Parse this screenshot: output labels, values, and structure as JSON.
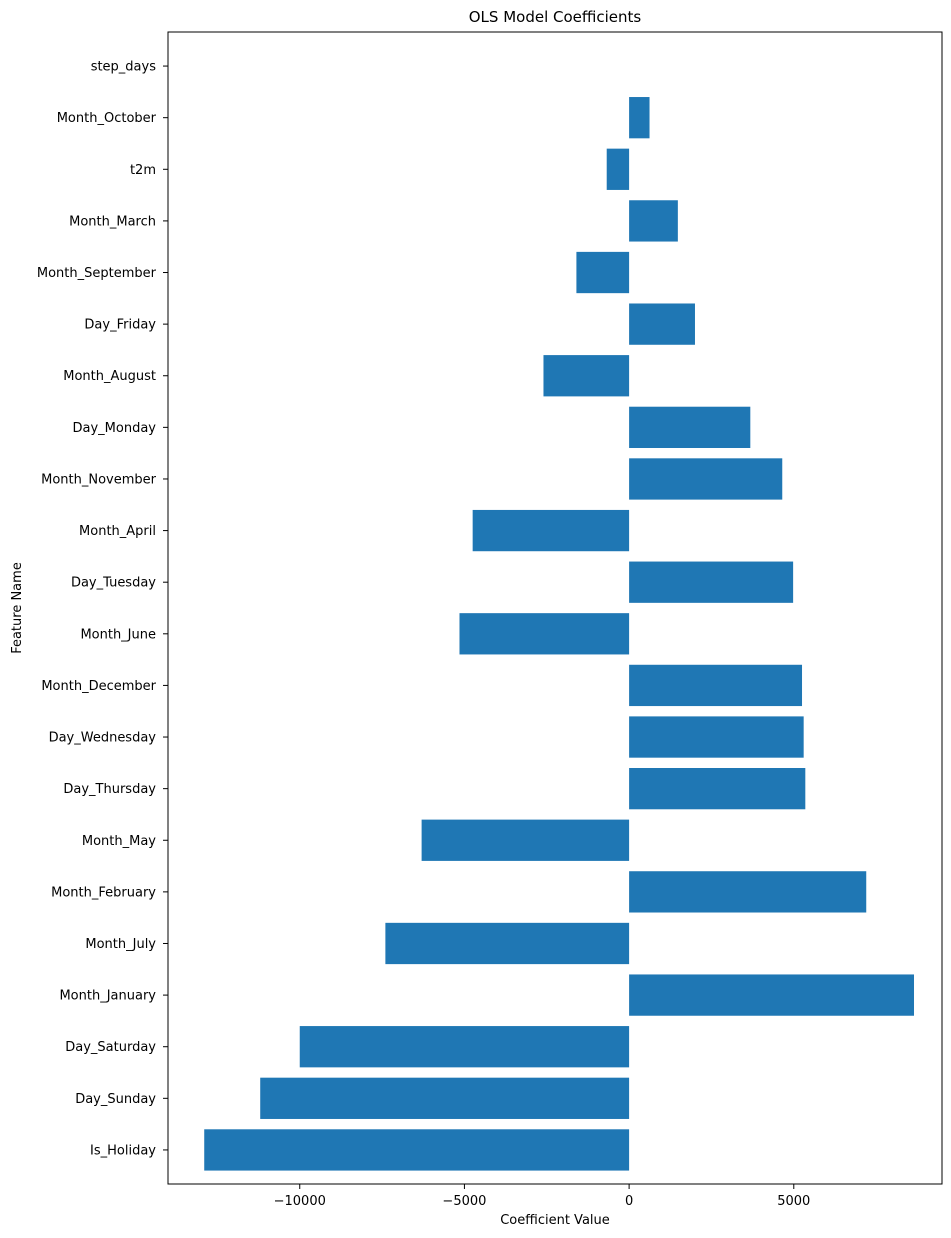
{
  "chart_data": {
    "type": "bar",
    "orientation": "horizontal",
    "title": "OLS Model Coefficients",
    "xlabel": "Coefficient Value",
    "ylabel": "Feature Name",
    "xlim": [
      -14000,
      9500
    ],
    "xticks": [
      -10000,
      -5000,
      0,
      5000
    ],
    "xtick_labels": [
      "−10000",
      "−5000",
      "0",
      "5000"
    ],
    "grid": false,
    "bar_color": "#1f77b4",
    "categories": [
      "Is_Holiday",
      "Day_Sunday",
      "Day_Saturday",
      "Month_January",
      "Month_July",
      "Month_February",
      "Month_May",
      "Day_Thursday",
      "Day_Wednesday",
      "Month_December",
      "Month_June",
      "Day_Tuesday",
      "Month_April",
      "Month_November",
      "Day_Monday",
      "Month_August",
      "Day_Friday",
      "Month_September",
      "Month_March",
      "t2m",
      "Month_October",
      "step_days"
    ],
    "values": [
      -12900,
      -11200,
      -10000,
      8650,
      -7400,
      7200,
      -6300,
      5350,
      5300,
      5250,
      -5150,
      4980,
      -4750,
      4650,
      3680,
      -2600,
      2000,
      -1600,
      1480,
      -680,
      620,
      0
    ]
  }
}
